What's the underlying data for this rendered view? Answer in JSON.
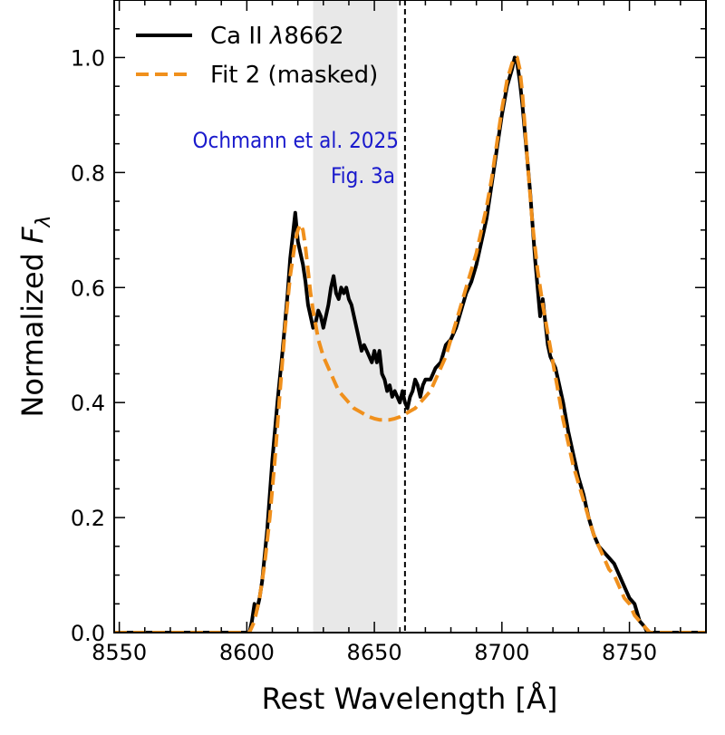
{
  "chart_data": {
    "type": "line",
    "xlabel": "Rest Wavelength [Å]",
    "ylabel_prefix": "Normalized ",
    "ylabel_var": "F",
    "ylabel_sub": "λ",
    "xlim": [
      8548,
      8780
    ],
    "ylim": [
      0.0,
      1.1
    ],
    "x_ticks": [
      8550,
      8600,
      8650,
      8700,
      8750
    ],
    "y_ticks": [
      0.0,
      0.2,
      0.4,
      0.6,
      0.8,
      1.0
    ],
    "x_tick_labels": [
      "8550",
      "8600",
      "8650",
      "8700",
      "8750"
    ],
    "y_tick_labels": [
      "0.0",
      "0.2",
      "0.4",
      "0.6",
      "0.8",
      "1.0"
    ],
    "x_minor_step": 10,
    "y_minor_step": 0.05,
    "grid": false,
    "legend_position": "top-left",
    "shaded_region": {
      "x0": 8626,
      "x1": 8659,
      "color": "#e8e8e8"
    },
    "vertical_line": {
      "x": 8662,
      "style": "dashed",
      "color": "#000000"
    },
    "annotation": {
      "lines": [
        "Ochmann et al. 2025",
        "Fig. 3a"
      ],
      "color": "#1a1acc"
    },
    "series": [
      {
        "name": "Ca II λ8662",
        "legend_prefix": "Ca II ",
        "legend_symbol": "λ",
        "legend_suffix": "8662",
        "color": "#000000",
        "style": "solid",
        "x": [
          8548,
          8601,
          8602,
          8603,
          8604,
          8605,
          8606,
          8608,
          8610,
          8612,
          8614,
          8616,
          8617,
          8618,
          8619,
          8620,
          8621,
          8622,
          8623,
          8624,
          8625,
          8626,
          8627,
          8628,
          8629,
          8630,
          8631,
          8632,
          8633,
          8634,
          8635,
          8636,
          8637,
          8638,
          8639,
          8640,
          8641,
          8642,
          8643,
          8644,
          8645,
          8646,
          8647,
          8648,
          8649,
          8650,
          8651,
          8652,
          8653,
          8654,
          8655,
          8656,
          8657,
          8658,
          8659,
          8660,
          8661,
          8662,
          8663,
          8664,
          8665,
          8666,
          8667,
          8668,
          8669,
          8670,
          8672,
          8674,
          8676,
          8678,
          8680,
          8682,
          8684,
          8686,
          8688,
          8690,
          8692,
          8694,
          8696,
          8698,
          8700,
          8702,
          8704,
          8705,
          8706,
          8707,
          8708,
          8709,
          8710,
          8711,
          8712,
          8713,
          8714,
          8715,
          8716,
          8717,
          8718,
          8719,
          8720,
          8721,
          8722,
          8724,
          8726,
          8728,
          8730,
          8732,
          8734,
          8736,
          8738,
          8740,
          8742,
          8744,
          8746,
          8748,
          8750,
          8752,
          8754,
          8756,
          8757,
          8758,
          8780
        ],
        "values": [
          0.0,
          0.0,
          0.02,
          0.05,
          0.04,
          0.06,
          0.09,
          0.18,
          0.3,
          0.4,
          0.49,
          0.59,
          0.65,
          0.69,
          0.73,
          0.68,
          0.66,
          0.64,
          0.61,
          0.57,
          0.55,
          0.53,
          0.54,
          0.56,
          0.55,
          0.53,
          0.55,
          0.57,
          0.6,
          0.62,
          0.59,
          0.58,
          0.6,
          0.59,
          0.6,
          0.58,
          0.57,
          0.55,
          0.53,
          0.51,
          0.49,
          0.5,
          0.49,
          0.48,
          0.47,
          0.49,
          0.47,
          0.49,
          0.45,
          0.44,
          0.42,
          0.43,
          0.41,
          0.42,
          0.41,
          0.4,
          0.42,
          0.4,
          0.39,
          0.41,
          0.42,
          0.44,
          0.43,
          0.41,
          0.43,
          0.44,
          0.44,
          0.46,
          0.47,
          0.5,
          0.51,
          0.53,
          0.56,
          0.59,
          0.61,
          0.64,
          0.68,
          0.72,
          0.78,
          0.84,
          0.9,
          0.95,
          0.98,
          1.0,
          0.99,
          0.96,
          0.92,
          0.87,
          0.82,
          0.77,
          0.71,
          0.65,
          0.6,
          0.55,
          0.58,
          0.54,
          0.5,
          0.48,
          0.47,
          0.46,
          0.44,
          0.4,
          0.35,
          0.31,
          0.27,
          0.24,
          0.2,
          0.17,
          0.15,
          0.14,
          0.13,
          0.12,
          0.1,
          0.08,
          0.06,
          0.05,
          0.02,
          0.01,
          0.0,
          0.0,
          0.0
        ]
      },
      {
        "name": "Fit 2 (masked)",
        "legend_prefix": "Fit 2 (masked)",
        "legend_symbol": "",
        "legend_suffix": "",
        "color": "#f0901c",
        "style": "dashed",
        "x": [
          8548,
          8601,
          8603,
          8605,
          8607,
          8609,
          8611,
          8613,
          8615,
          8617,
          8619,
          8620,
          8621,
          8622,
          8623,
          8624,
          8625,
          8626,
          8628,
          8630,
          8632,
          8634,
          8636,
          8638,
          8640,
          8642,
          8644,
          8646,
          8648,
          8650,
          8652,
          8654,
          8656,
          8658,
          8660,
          8662,
          8664,
          8666,
          8668,
          8670,
          8672,
          8674,
          8676,
          8678,
          8680,
          8682,
          8684,
          8686,
          8688,
          8690,
          8692,
          8694,
          8696,
          8698,
          8700,
          8702,
          8704,
          8705,
          8706,
          8707,
          8708,
          8709,
          8710,
          8712,
          8714,
          8716,
          8718,
          8720,
          8722,
          8724,
          8726,
          8728,
          8730,
          8732,
          8734,
          8736,
          8738,
          8740,
          8742,
          8744,
          8746,
          8748,
          8750,
          8752,
          8754,
          8756,
          8758,
          8780
        ],
        "values": [
          0.0,
          0.0,
          0.02,
          0.06,
          0.12,
          0.2,
          0.3,
          0.42,
          0.53,
          0.62,
          0.68,
          0.7,
          0.71,
          0.7,
          0.67,
          0.63,
          0.59,
          0.56,
          0.51,
          0.48,
          0.46,
          0.44,
          0.42,
          0.41,
          0.4,
          0.39,
          0.385,
          0.38,
          0.375,
          0.372,
          0.37,
          0.37,
          0.37,
          0.372,
          0.375,
          0.38,
          0.385,
          0.39,
          0.4,
          0.41,
          0.42,
          0.44,
          0.46,
          0.48,
          0.51,
          0.54,
          0.57,
          0.6,
          0.63,
          0.66,
          0.7,
          0.74,
          0.79,
          0.85,
          0.91,
          0.96,
          0.99,
          1.0,
          1.0,
          0.98,
          0.94,
          0.88,
          0.82,
          0.71,
          0.63,
          0.57,
          0.52,
          0.47,
          0.42,
          0.37,
          0.33,
          0.29,
          0.26,
          0.23,
          0.2,
          0.17,
          0.15,
          0.13,
          0.11,
          0.1,
          0.08,
          0.06,
          0.05,
          0.03,
          0.02,
          0.01,
          0.0,
          0.0
        ]
      }
    ]
  }
}
